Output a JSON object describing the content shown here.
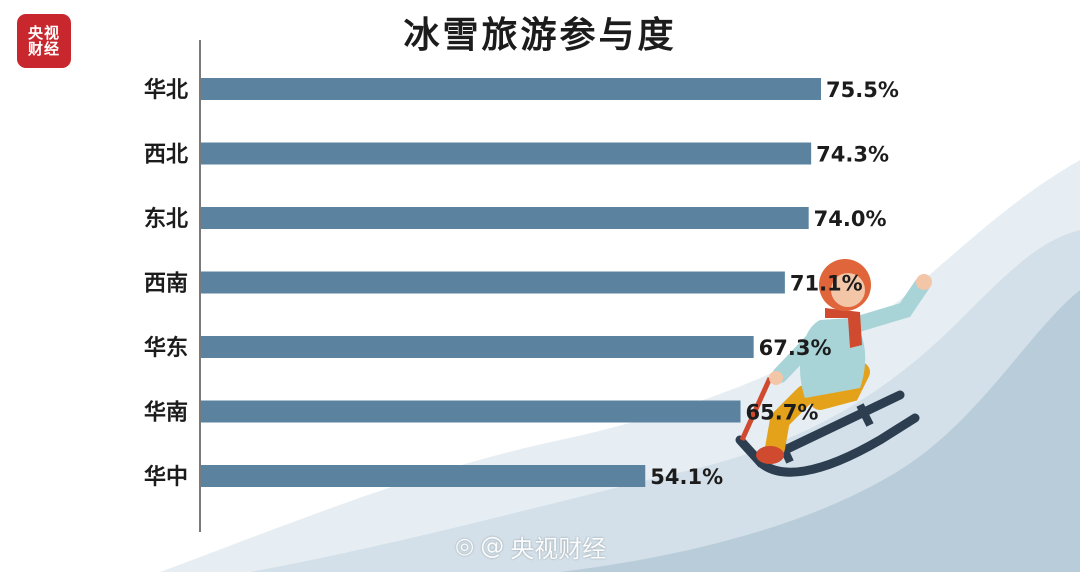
{
  "logo_text": "央视财经",
  "watermark": {
    "at": "@",
    "handle": "央视财经",
    "icon": "weibo-icon"
  },
  "colors": {
    "bar": "#5b83a0",
    "text": "#1c1c1c",
    "slope_light": "#dde7ee",
    "slope_dark": "#b9ccd9"
  },
  "chart_data": {
    "type": "bar",
    "orientation": "horizontal",
    "title": "冰雪旅游参与度",
    "xlabel": "",
    "ylabel": "",
    "categories": [
      "华北",
      "西北",
      "东北",
      "西南",
      "华东",
      "华南",
      "华中"
    ],
    "values": [
      75.5,
      74.3,
      74.0,
      71.1,
      67.3,
      65.7,
      54.1
    ],
    "value_labels": [
      "75.5%",
      "74.3%",
      "74.0%",
      "71.1%",
      "67.3%",
      "65.7%",
      "54.1%"
    ],
    "unit": "%",
    "grid": false,
    "legend": "none"
  }
}
